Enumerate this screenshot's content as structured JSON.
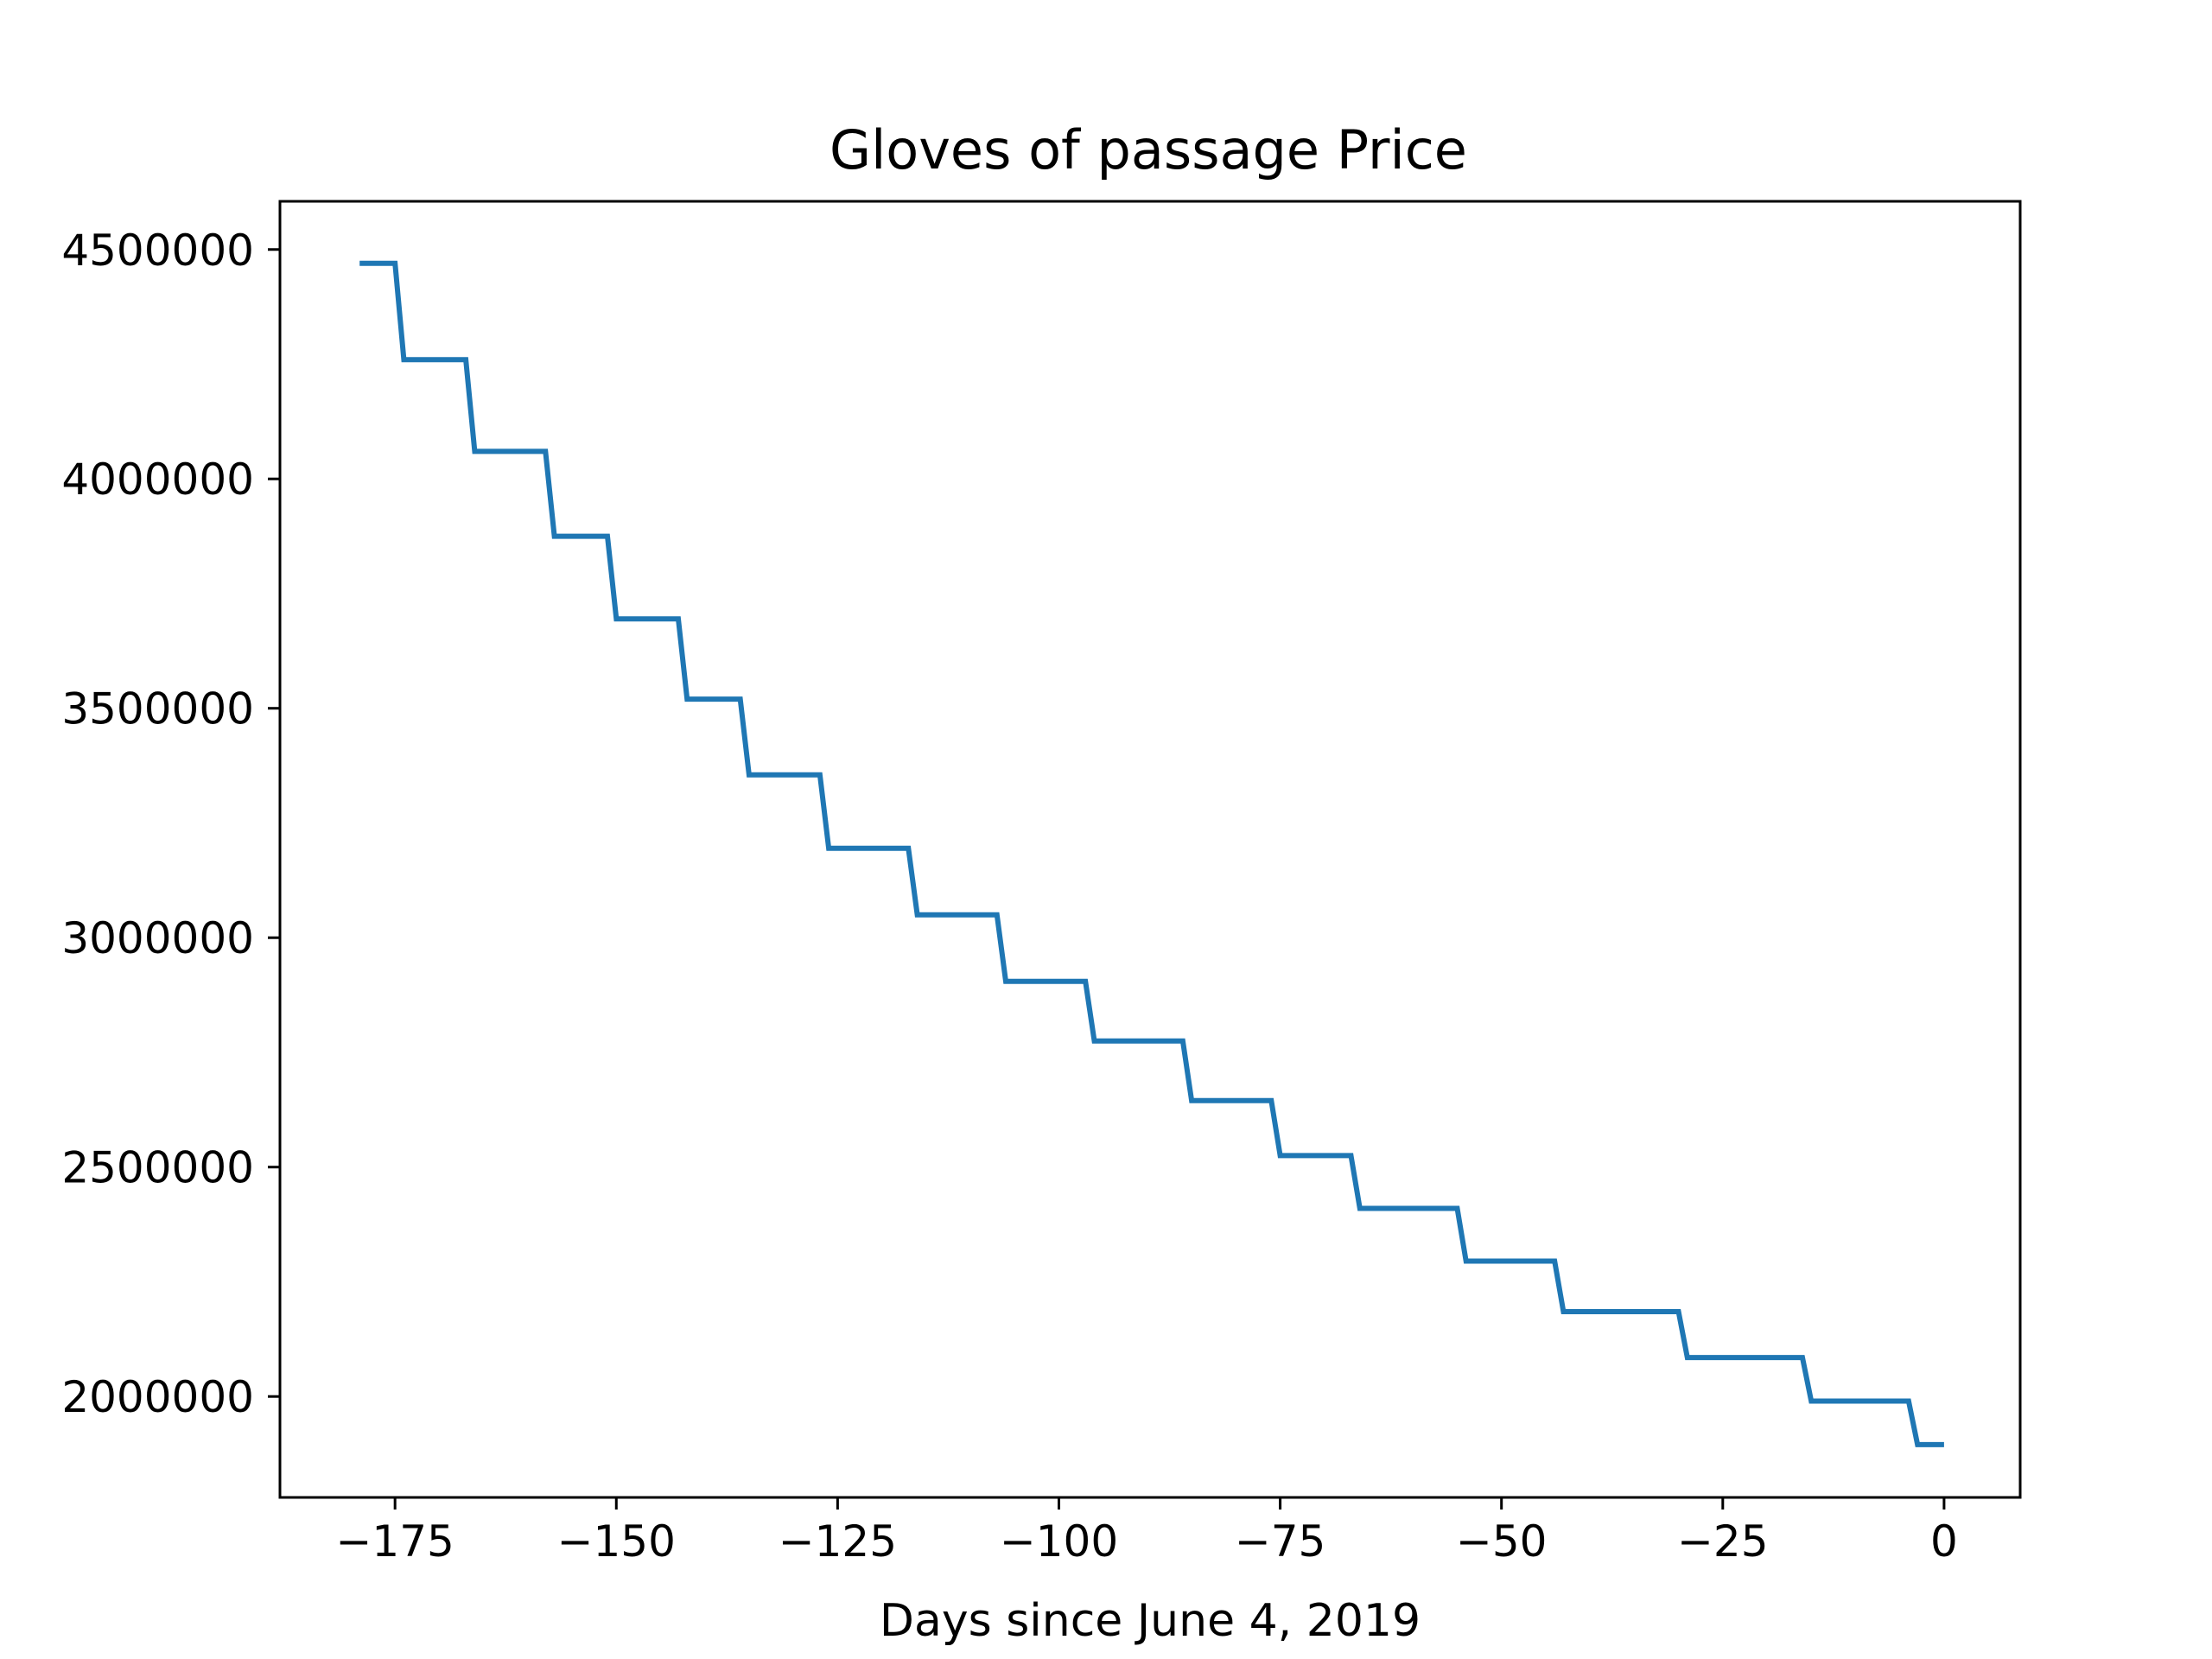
{
  "chart_data": {
    "type": "line",
    "title": "Gloves of passage Price",
    "xlabel": "Days since June 4, 2019",
    "ylabel": "",
    "xlim": [
      -188,
      8.6
    ],
    "ylim": [
      1780000,
      4605000
    ],
    "xticks": [
      -175,
      -150,
      -125,
      -100,
      -75,
      -50,
      -25,
      0
    ],
    "xtick_labels": [
      "−175",
      "−150",
      "−125",
      "−100",
      "−75",
      "−50",
      "−25",
      "0"
    ],
    "yticks": [
      2000000,
      2500000,
      3000000,
      3500000,
      4000000,
      4500000
    ],
    "ytick_labels": [
      "2000000",
      "2500000",
      "3000000",
      "3500000",
      "4000000",
      "4500000"
    ],
    "grid": false,
    "series_color": "#1f77b4",
    "series": [
      {
        "name": "",
        "x": [
          -179,
          -175,
          -174,
          -167,
          -166,
          -158,
          -157,
          -151,
          -150,
          -143,
          -142,
          -136,
          -135,
          -127,
          -126,
          -117,
          -116,
          -107,
          -106,
          -97,
          -96,
          -86,
          -85,
          -76,
          -75,
          -67,
          -66,
          -55,
          -54,
          -44,
          -43,
          -30,
          -29,
          -16,
          -15,
          -4,
          -3,
          0
        ],
        "y": [
          4470000,
          4470000,
          4260000,
          4260000,
          4060000,
          4060000,
          3875000,
          3875000,
          3695000,
          3695000,
          3520000,
          3520000,
          3355000,
          3355000,
          3195000,
          3195000,
          3050000,
          3050000,
          2905000,
          2905000,
          2775000,
          2775000,
          2645000,
          2645000,
          2525000,
          2525000,
          2410000,
          2410000,
          2295000,
          2295000,
          2185000,
          2185000,
          2085000,
          2085000,
          1990000,
          1990000,
          1895000,
          1895000
        ]
      }
    ]
  }
}
